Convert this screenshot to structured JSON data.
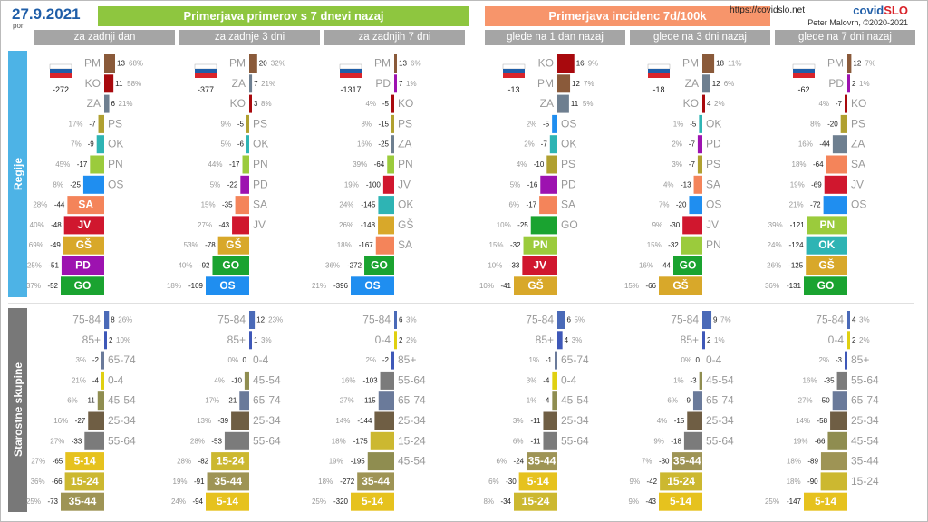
{
  "header": {
    "date": "27.9.2021",
    "weekday": "pon",
    "title_cases": "Primerjava primerov s 7 dnevi nazaj",
    "title_incidence": "Primerjava incidenc 7d/100k",
    "url": "https://covidslo.net",
    "brand_a": "covid",
    "brand_b": "SLO",
    "author": "Peter Malovrh, ©2020-2021"
  },
  "side_labels": {
    "regions": "Regije",
    "ages": "Starostne skupine"
  },
  "colors": {
    "PM": "#8a5a3a",
    "KO": "#a8090d",
    "ZA": "#6e7f90",
    "PS": "#b0a030",
    "OK": "#2eb4b4",
    "PN": "#9bcb3c",
    "OS": "#1f8ef0",
    "SA": "#f4845a",
    "JV": "#d0172e",
    "GŠ": "#d8a82a",
    "PD": "#9d12b0",
    "GO": "#1aa330",
    "75-84": "#4a6ab8",
    "85+": "#3e58b8",
    "65-74": "#6a7a9a",
    "0-4": "#e0d010",
    "45-54": "#8f8d50",
    "25-34": "#6f5e44",
    "55-64": "#7b7b7b",
    "5-14": "#e6c21e",
    "15-24": "#ccb830",
    "35-44": "#9e9455",
    "accent": "#1f5ea8"
  },
  "chart_data": [
    {
      "type": "bar",
      "title": "za zadnji dan",
      "slo_total": "-272",
      "regions": [
        {
          "label": "PM",
          "value": 13,
          "pct": "68%"
        },
        {
          "label": "KO",
          "value": 11,
          "pct": "58%"
        },
        {
          "label": "ZA",
          "value": 6,
          "pct": "21%"
        },
        {
          "label": "PS",
          "value": -7,
          "pct": "17%"
        },
        {
          "label": "OK",
          "value": -9,
          "pct": "7%"
        },
        {
          "label": "PN",
          "value": -17,
          "pct": "45%"
        },
        {
          "label": "OS",
          "value": -25,
          "pct": "8%"
        },
        {
          "label": "SA",
          "value": -44,
          "pct": "28%"
        },
        {
          "label": "JV",
          "value": -48,
          "pct": "40%"
        },
        {
          "label": "GŠ",
          "value": -49,
          "pct": "69%"
        },
        {
          "label": "PD",
          "value": -51,
          "pct": "25%"
        },
        {
          "label": "GO",
          "value": -52,
          "pct": "37%"
        }
      ],
      "ages": [
        {
          "label": "75-84",
          "value": 8,
          "pct": "26%"
        },
        {
          "label": "85+",
          "value": 2,
          "pct": "10%"
        },
        {
          "label": "65-74",
          "value": -2,
          "pct": "3%"
        },
        {
          "label": "0-4",
          "value": -4,
          "pct": "21%"
        },
        {
          "label": "45-54",
          "value": -11,
          "pct": "6%"
        },
        {
          "label": "25-34",
          "value": -27,
          "pct": "16%"
        },
        {
          "label": "55-64",
          "value": -33,
          "pct": "27%"
        },
        {
          "label": "5-14",
          "value": -65,
          "pct": "27%"
        },
        {
          "label": "15-24",
          "value": -66,
          "pct": "36%"
        },
        {
          "label": "35-44",
          "value": -73,
          "pct": "25%"
        }
      ]
    },
    {
      "type": "bar",
      "title": "za zadnje 3 dni",
      "slo_total": "-377",
      "regions": [
        {
          "label": "PM",
          "value": 20,
          "pct": "32%"
        },
        {
          "label": "ZA",
          "value": 7,
          "pct": "21%"
        },
        {
          "label": "KO",
          "value": 3,
          "pct": "8%"
        },
        {
          "label": "PS",
          "value": -5,
          "pct": "9%"
        },
        {
          "label": "OK",
          "value": -6,
          "pct": "5%"
        },
        {
          "label": "PN",
          "value": -17,
          "pct": "44%"
        },
        {
          "label": "PD",
          "value": -22,
          "pct": "5%"
        },
        {
          "label": "SA",
          "value": -35,
          "pct": "15%"
        },
        {
          "label": "JV",
          "value": -43,
          "pct": "27%"
        },
        {
          "label": "GŠ",
          "value": -78,
          "pct": "53%"
        },
        {
          "label": "GO",
          "value": -92,
          "pct": "40%"
        },
        {
          "label": "OS",
          "value": -109,
          "pct": "18%"
        }
      ],
      "ages": [
        {
          "label": "75-84",
          "value": 12,
          "pct": "23%"
        },
        {
          "label": "85+",
          "value": 1,
          "pct": "3%"
        },
        {
          "label": "0-4",
          "value": 0,
          "pct": "0%"
        },
        {
          "label": "45-54",
          "value": -10,
          "pct": "4%"
        },
        {
          "label": "65-74",
          "value": -21,
          "pct": "17%"
        },
        {
          "label": "25-34",
          "value": -39,
          "pct": "13%"
        },
        {
          "label": "55-64",
          "value": -53,
          "pct": "28%"
        },
        {
          "label": "15-24",
          "value": -82,
          "pct": "28%"
        },
        {
          "label": "35-44",
          "value": -91,
          "pct": "19%"
        },
        {
          "label": "5-14",
          "value": -94,
          "pct": "24%"
        }
      ]
    },
    {
      "type": "bar",
      "title": "za zadnjih 7 dni",
      "slo_total": "-1317",
      "regions": [
        {
          "label": "PM",
          "value": 13,
          "pct": "6%"
        },
        {
          "label": "PD",
          "value": 7,
          "pct": "1%"
        },
        {
          "label": "KO",
          "value": -5,
          "pct": "4%"
        },
        {
          "label": "PS",
          "value": -15,
          "pct": "8%"
        },
        {
          "label": "ZA",
          "value": -25,
          "pct": "16%"
        },
        {
          "label": "PN",
          "value": -64,
          "pct": "39%"
        },
        {
          "label": "JV",
          "value": -100,
          "pct": "19%"
        },
        {
          "label": "OK",
          "value": -145,
          "pct": "24%"
        },
        {
          "label": "GŠ",
          "value": -148,
          "pct": "26%"
        },
        {
          "label": "SA",
          "value": -167,
          "pct": "18%"
        },
        {
          "label": "GO",
          "value": -272,
          "pct": "36%"
        },
        {
          "label": "OS",
          "value": -396,
          "pct": "21%"
        }
      ],
      "ages": [
        {
          "label": "75-84",
          "value": 6,
          "pct": "3%"
        },
        {
          "label": "0-4",
          "value": 2,
          "pct": "2%"
        },
        {
          "label": "85+",
          "value": -2,
          "pct": "2%"
        },
        {
          "label": "55-64",
          "value": -103,
          "pct": "16%"
        },
        {
          "label": "65-74",
          "value": -115,
          "pct": "27%"
        },
        {
          "label": "25-34",
          "value": -144,
          "pct": "14%"
        },
        {
          "label": "15-24",
          "value": -175,
          "pct": "18%"
        },
        {
          "label": "45-54",
          "value": -195,
          "pct": "19%"
        },
        {
          "label": "35-44",
          "value": -272,
          "pct": "18%"
        },
        {
          "label": "5-14",
          "value": -320,
          "pct": "25%"
        }
      ]
    },
    {
      "type": "bar",
      "title": "glede na 1 dan nazaj",
      "slo_total": "-13",
      "regions": [
        {
          "label": "KO",
          "value": 16,
          "pct": "9%"
        },
        {
          "label": "PM",
          "value": 12,
          "pct": "7%"
        },
        {
          "label": "ZA",
          "value": 11,
          "pct": "5%"
        },
        {
          "label": "OS",
          "value": -5,
          "pct": "2%"
        },
        {
          "label": "OK",
          "value": -7,
          "pct": "2%"
        },
        {
          "label": "PS",
          "value": -10,
          "pct": "4%"
        },
        {
          "label": "PD",
          "value": -16,
          "pct": "5%"
        },
        {
          "label": "SA",
          "value": -17,
          "pct": "6%"
        },
        {
          "label": "GO",
          "value": -25,
          "pct": "10%"
        },
        {
          "label": "PN",
          "value": -32,
          "pct": "15%"
        },
        {
          "label": "JV",
          "value": -33,
          "pct": "10%"
        },
        {
          "label": "GŠ",
          "value": -41,
          "pct": "10%"
        }
      ],
      "ages": [
        {
          "label": "75-84",
          "value": 6,
          "pct": "5%"
        },
        {
          "label": "85+",
          "value": 4,
          "pct": "3%"
        },
        {
          "label": "65-74",
          "value": -1,
          "pct": "1%"
        },
        {
          "label": "0-4",
          "value": -4,
          "pct": "3%"
        },
        {
          "label": "45-54",
          "value": -4,
          "pct": "1%"
        },
        {
          "label": "25-34",
          "value": -11,
          "pct": "3%"
        },
        {
          "label": "55-64",
          "value": -11,
          "pct": "6%"
        },
        {
          "label": "35-44",
          "value": -24,
          "pct": "6%"
        },
        {
          "label": "5-14",
          "value": -30,
          "pct": "6%"
        },
        {
          "label": "15-24",
          "value": -34,
          "pct": "8%"
        }
      ]
    },
    {
      "type": "bar",
      "title": "glede na 3 dni nazaj",
      "slo_total": "-18",
      "regions": [
        {
          "label": "PM",
          "value": 18,
          "pct": "11%"
        },
        {
          "label": "ZA",
          "value": 12,
          "pct": "6%"
        },
        {
          "label": "KO",
          "value": 4,
          "pct": "2%"
        },
        {
          "label": "OK",
          "value": -5,
          "pct": "1%"
        },
        {
          "label": "PD",
          "value": -7,
          "pct": "2%"
        },
        {
          "label": "PS",
          "value": -7,
          "pct": "3%"
        },
        {
          "label": "SA",
          "value": -13,
          "pct": "4%"
        },
        {
          "label": "OS",
          "value": -20,
          "pct": "7%"
        },
        {
          "label": "JV",
          "value": -30,
          "pct": "9%"
        },
        {
          "label": "PN",
          "value": -32,
          "pct": "15%"
        },
        {
          "label": "GO",
          "value": -44,
          "pct": "16%"
        },
        {
          "label": "GŠ",
          "value": -66,
          "pct": "15%"
        }
      ],
      "ages": [
        {
          "label": "75-84",
          "value": 9,
          "pct": "7%"
        },
        {
          "label": "85+",
          "value": 2,
          "pct": "1%"
        },
        {
          "label": "0-4",
          "value": 0,
          "pct": "0%"
        },
        {
          "label": "45-54",
          "value": -3,
          "pct": "1%"
        },
        {
          "label": "65-74",
          "value": -9,
          "pct": "6%"
        },
        {
          "label": "25-34",
          "value": -15,
          "pct": "4%"
        },
        {
          "label": "55-64",
          "value": -18,
          "pct": "9%"
        },
        {
          "label": "35-44",
          "value": -30,
          "pct": "7%"
        },
        {
          "label": "15-24",
          "value": -42,
          "pct": "9%"
        },
        {
          "label": "5-14",
          "value": -43,
          "pct": "9%"
        }
      ]
    },
    {
      "type": "bar",
      "title": "glede na 7 dni nazaj",
      "slo_total": "-62",
      "regions": [
        {
          "label": "PM",
          "value": 12,
          "pct": "7%"
        },
        {
          "label": "PD",
          "value": 2,
          "pct": "1%"
        },
        {
          "label": "KO",
          "value": -7,
          "pct": "4%"
        },
        {
          "label": "PS",
          "value": -20,
          "pct": "8%"
        },
        {
          "label": "ZA",
          "value": -44,
          "pct": "16%"
        },
        {
          "label": "SA",
          "value": -64,
          "pct": "18%"
        },
        {
          "label": "JV",
          "value": -69,
          "pct": "19%"
        },
        {
          "label": "OS",
          "value": -72,
          "pct": "21%"
        },
        {
          "label": "PN",
          "value": -121,
          "pct": "39%"
        },
        {
          "label": "OK",
          "value": -124,
          "pct": "24%"
        },
        {
          "label": "GŠ",
          "value": -125,
          "pct": "26%"
        },
        {
          "label": "GO",
          "value": -131,
          "pct": "36%"
        }
      ],
      "ages": [
        {
          "label": "75-84",
          "value": 4,
          "pct": "3%"
        },
        {
          "label": "0-4",
          "value": 2,
          "pct": "2%"
        },
        {
          "label": "85+",
          "value": -3,
          "pct": "2%"
        },
        {
          "label": "55-64",
          "value": -35,
          "pct": "16%"
        },
        {
          "label": "65-74",
          "value": -50,
          "pct": "27%"
        },
        {
          "label": "25-34",
          "value": -58,
          "pct": "14%"
        },
        {
          "label": "45-54",
          "value": -66,
          "pct": "19%"
        },
        {
          "label": "35-44",
          "value": -89,
          "pct": "18%"
        },
        {
          "label": "15-24",
          "value": -90,
          "pct": "18%"
        },
        {
          "label": "5-14",
          "value": -147,
          "pct": "25%"
        }
      ]
    }
  ]
}
